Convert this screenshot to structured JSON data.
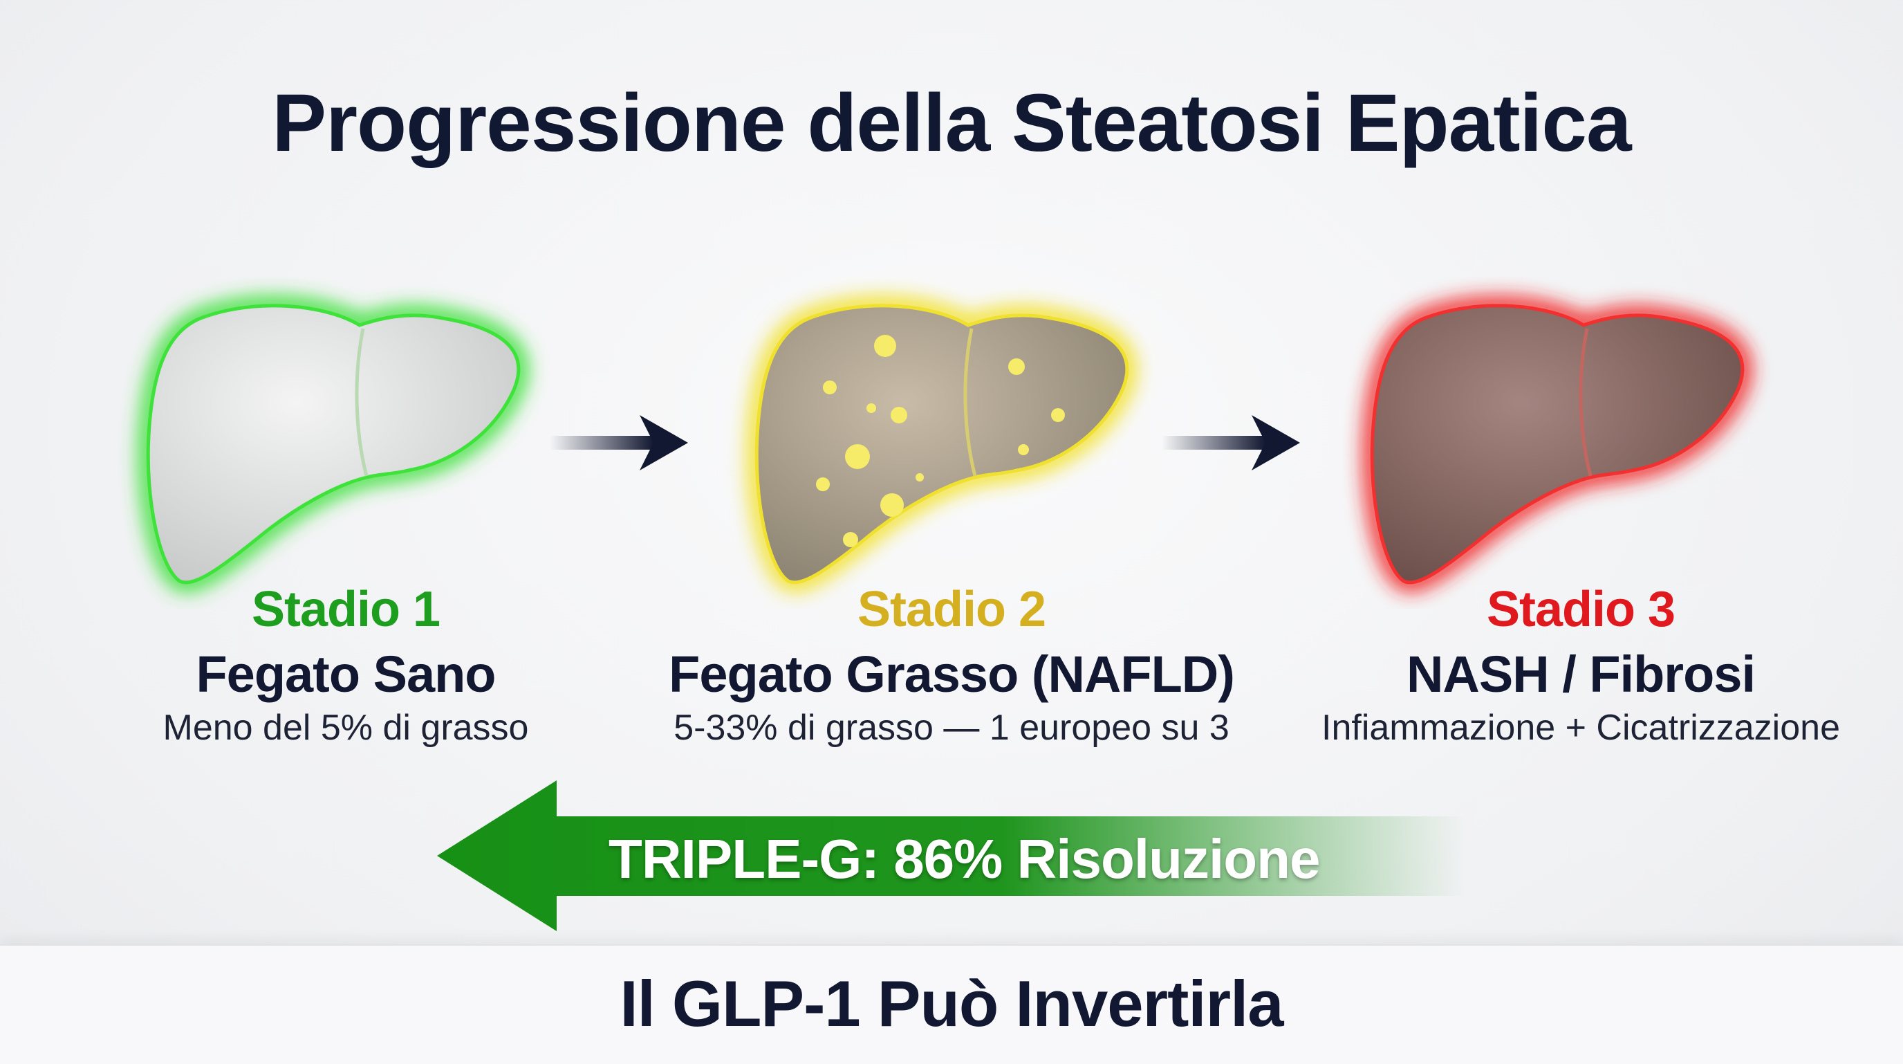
{
  "title": "Progressione della Steatosi Epatica",
  "colors": {
    "stage1": "#1e9e1e",
    "stage2": "#d4b020",
    "stage3": "#e0191e",
    "dark": "#121831",
    "resolution_arrow": "#1a8f1a"
  },
  "stages": [
    {
      "label": "Stadio 1",
      "name": "Fegato Sano",
      "description": "Meno del 5% di grasso"
    },
    {
      "label": "Stadio 2",
      "name": "Fegato Grasso (NAFLD)",
      "description": "5-33% di grasso — 1 europeo su 3"
    },
    {
      "label": "Stadio 3",
      "name": "NASH / Fibrosi",
      "description": "Infiammazione + Cicatrizzazione"
    }
  ],
  "reversal_arrow": {
    "text": "TRIPLE-G: 86% Risoluzione"
  },
  "footer": {
    "text": "Il GLP-1 Può Invertirla"
  }
}
